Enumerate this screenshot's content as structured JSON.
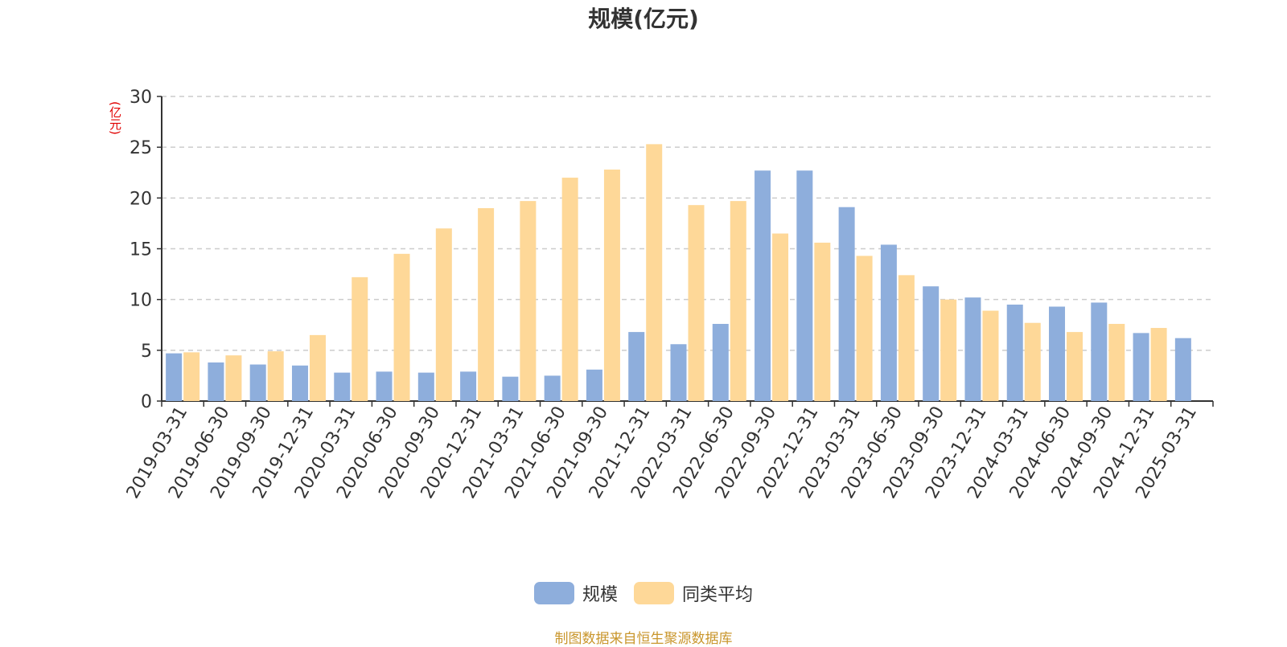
{
  "chart_data": {
    "type": "bar",
    "title": "规模(亿元)",
    "ylabel": "(亿元)",
    "xlabel": "",
    "ylim": [
      0,
      30
    ],
    "yticks": [
      0,
      5,
      10,
      15,
      20,
      25,
      30
    ],
    "grid": true,
    "legend_position": "bottom",
    "categories": [
      "2019-03-31",
      "2019-06-30",
      "2019-09-30",
      "2019-12-31",
      "2020-03-31",
      "2020-06-30",
      "2020-09-30",
      "2020-12-31",
      "2021-03-31",
      "2021-06-30",
      "2021-09-30",
      "2021-12-31",
      "2022-03-31",
      "2022-06-30",
      "2022-09-30",
      "2022-12-31",
      "2023-03-31",
      "2023-06-30",
      "2023-09-30",
      "2023-12-31",
      "2024-03-31",
      "2024-06-30",
      "2024-09-30",
      "2024-12-31",
      "2025-03-31"
    ],
    "series": [
      {
        "name": "规模",
        "color": "#8eaedc",
        "values": [
          4.7,
          3.8,
          3.6,
          3.5,
          2.8,
          2.9,
          2.8,
          2.9,
          2.4,
          2.5,
          3.1,
          6.8,
          5.6,
          7.6,
          22.7,
          22.7,
          19.1,
          15.4,
          11.3,
          10.2,
          9.5,
          9.3,
          9.7,
          6.7,
          6.2
        ]
      },
      {
        "name": "同类平均",
        "color": "#fed898",
        "values": [
          4.8,
          4.5,
          4.9,
          6.5,
          12.2,
          14.5,
          17.0,
          19.0,
          19.7,
          22.0,
          22.8,
          25.3,
          19.3,
          19.7,
          16.5,
          15.6,
          14.3,
          12.4,
          10.0,
          8.9,
          7.7,
          6.8,
          7.6,
          7.2,
          null
        ]
      }
    ]
  },
  "source_text": "制图数据来自恒生聚源数据库"
}
